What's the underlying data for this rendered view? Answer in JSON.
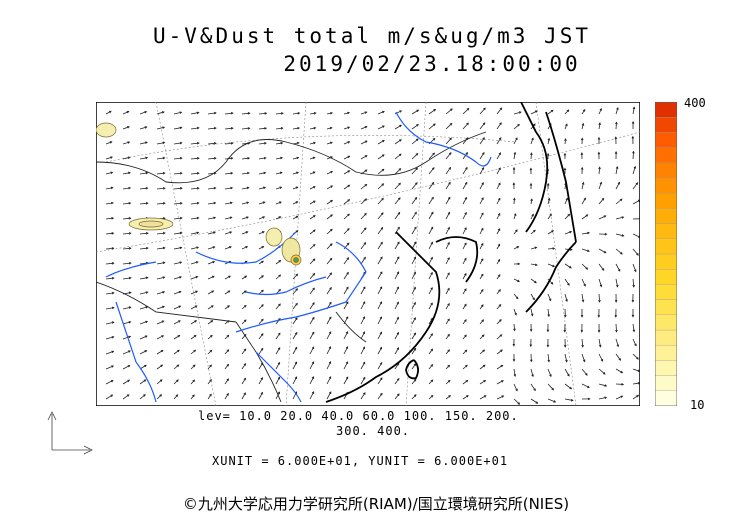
{
  "header": {
    "title": "U-V&Dust total m/s&ug/m3 JST",
    "timestamp": "2019/02/23.18:00:00"
  },
  "colorbar": {
    "max_label": "400",
    "min_label": "10",
    "colors": [
      "#ffffe0",
      "#fffbc8",
      "#fff6b0",
      "#fff198",
      "#ffec80",
      "#ffe768",
      "#ffe250",
      "#ffdd38",
      "#ffd628",
      "#ffcd20",
      "#ffc418",
      "#ffb910",
      "#ffad08",
      "#ffa000",
      "#ff9200",
      "#ff8200",
      "#ff7000",
      "#ff5c00",
      "#f04800",
      "#e03000"
    ]
  },
  "levels": {
    "line1": "lev= 10.0 20.0 40.0 60.0 100. 150. 200.",
    "line2": "300. 400."
  },
  "units": "XUNIT = 6.000E+01, YUNIT = 6.000E+01",
  "credit": "©九州大学応用力学研究所(RIAM)/国立環境研究所(NIES)",
  "colors": {
    "rivers": "#1e5aff",
    "coast": "#000000",
    "dust_low": "#f4eeb0"
  }
}
